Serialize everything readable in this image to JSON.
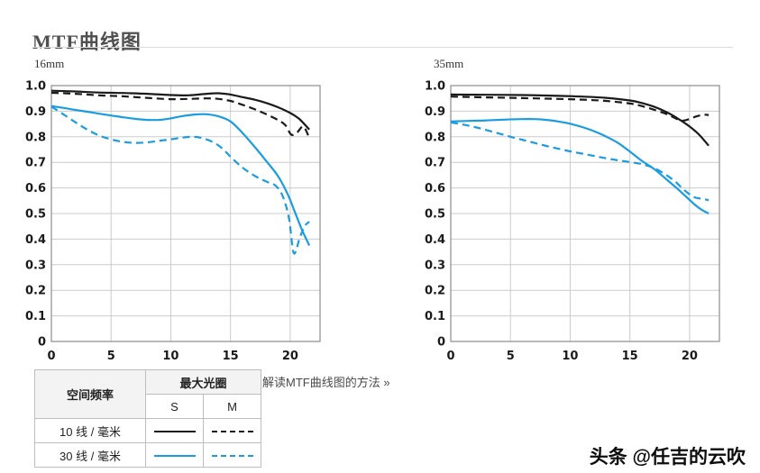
{
  "page": {
    "title": "MTF曲线图",
    "read_link": "解读MTF曲线图的方法 »",
    "watermark": "头条 @任吉的云吹"
  },
  "colors": {
    "black_curve": "#1a1a1a",
    "blue_curve": "#1a9ce1",
    "grid": "#cccccc",
    "plot_border": "#8c8c8c"
  },
  "legend_table": {
    "spatial_freq_header": "空间频率",
    "aperture_header": "最大光圈",
    "s_label": "S",
    "m_label": "M",
    "rows": [
      {
        "label": "10 线 / 毫米",
        "color": "#1a1a1a"
      },
      {
        "label": "30 线 / 毫米",
        "color": "#1a9ce1"
      }
    ]
  },
  "chart_data": [
    {
      "type": "line",
      "title": "16mm",
      "xlabel": "",
      "ylabel": "",
      "xlim": [
        0,
        22.5
      ],
      "ylim": [
        0,
        1.0
      ],
      "xticks": [
        0,
        5,
        10,
        15,
        20
      ],
      "yticks": [
        0,
        0.1,
        0.2,
        0.3,
        0.4,
        0.5,
        0.6,
        0.7,
        0.8,
        0.9,
        1.0
      ],
      "grid": true,
      "legend_position": "table-below-left",
      "series": [
        {
          "name": "10线/毫米 S",
          "color": "#1a1a1a",
          "dash": false,
          "points": [
            [
              0,
              0.98
            ],
            [
              2,
              0.977
            ],
            [
              4,
              0.973
            ],
            [
              6,
              0.971
            ],
            [
              8,
              0.968
            ],
            [
              10,
              0.963
            ],
            [
              11.5,
              0.962
            ],
            [
              13,
              0.968
            ],
            [
              14,
              0.97
            ],
            [
              15,
              0.965
            ],
            [
              16,
              0.955
            ],
            [
              17,
              0.945
            ],
            [
              18,
              0.932
            ],
            [
              19,
              0.915
            ],
            [
              20,
              0.893
            ],
            [
              20.8,
              0.868
            ],
            [
              21.6,
              0.828
            ]
          ]
        },
        {
          "name": "10线/毫米 M",
          "color": "#1a1a1a",
          "dash": true,
          "points": [
            [
              0,
              0.972
            ],
            [
              2,
              0.968
            ],
            [
              4,
              0.962
            ],
            [
              6,
              0.958
            ],
            [
              8,
              0.952
            ],
            [
              10,
              0.947
            ],
            [
              11.5,
              0.948
            ],
            [
              13,
              0.95
            ],
            [
              14,
              0.948
            ],
            [
              15,
              0.94
            ],
            [
              16,
              0.925
            ],
            [
              17,
              0.908
            ],
            [
              18,
              0.888
            ],
            [
              19,
              0.865
            ],
            [
              19.6,
              0.845
            ],
            [
              20.1,
              0.808
            ],
            [
              20.6,
              0.818
            ],
            [
              21.1,
              0.84
            ],
            [
              21.6,
              0.795
            ]
          ]
        },
        {
          "name": "30线/毫米 S",
          "color": "#1a9ce1",
          "dash": false,
          "points": [
            [
              0,
              0.92
            ],
            [
              1,
              0.913
            ],
            [
              2,
              0.905
            ],
            [
              3,
              0.898
            ],
            [
              4,
              0.89
            ],
            [
              5,
              0.883
            ],
            [
              6,
              0.876
            ],
            [
              7,
              0.87
            ],
            [
              8,
              0.866
            ],
            [
              9,
              0.866
            ],
            [
              10,
              0.872
            ],
            [
              11,
              0.881
            ],
            [
              12,
              0.887
            ],
            [
              13,
              0.888
            ],
            [
              14,
              0.88
            ],
            [
              15,
              0.86
            ],
            [
              16,
              0.815
            ],
            [
              17,
              0.762
            ],
            [
              18,
              0.705
            ],
            [
              19,
              0.645
            ],
            [
              19.8,
              0.575
            ],
            [
              20.4,
              0.505
            ],
            [
              21,
              0.435
            ],
            [
              21.6,
              0.375
            ]
          ]
        },
        {
          "name": "30线/毫米 M",
          "color": "#1a9ce1",
          "dash": true,
          "points": [
            [
              0,
              0.918
            ],
            [
              1,
              0.888
            ],
            [
              2,
              0.857
            ],
            [
              3,
              0.828
            ],
            [
              4,
              0.805
            ],
            [
              5,
              0.79
            ],
            [
              6,
              0.78
            ],
            [
              7,
              0.776
            ],
            [
              8,
              0.778
            ],
            [
              9,
              0.784
            ],
            [
              10,
              0.79
            ],
            [
              11,
              0.797
            ],
            [
              11.8,
              0.8
            ],
            [
              12.6,
              0.795
            ],
            [
              13.5,
              0.78
            ],
            [
              14.3,
              0.755
            ],
            [
              15,
              0.722
            ],
            [
              16,
              0.68
            ],
            [
              17,
              0.648
            ],
            [
              18,
              0.625
            ],
            [
              18.8,
              0.608
            ],
            [
              19.4,
              0.565
            ],
            [
              19.9,
              0.48
            ],
            [
              20.3,
              0.345
            ],
            [
              20.8,
              0.405
            ],
            [
              21.2,
              0.45
            ],
            [
              21.6,
              0.468
            ]
          ]
        }
      ]
    },
    {
      "type": "line",
      "title": "35mm",
      "xlabel": "",
      "ylabel": "",
      "xlim": [
        0,
        22.5
      ],
      "ylim": [
        0,
        1.0
      ],
      "xticks": [
        0,
        5,
        10,
        15,
        20
      ],
      "yticks": [
        0,
        0.1,
        0.2,
        0.3,
        0.4,
        0.5,
        0.6,
        0.7,
        0.8,
        0.9,
        1.0
      ],
      "grid": true,
      "legend_position": "table-below-left",
      "series": [
        {
          "name": "10线/毫米 S",
          "color": "#1a1a1a",
          "dash": false,
          "points": [
            [
              0,
              0.965
            ],
            [
              3,
              0.964
            ],
            [
              6,
              0.963
            ],
            [
              9,
              0.96
            ],
            [
              11,
              0.957
            ],
            [
              13,
              0.952
            ],
            [
              15,
              0.942
            ],
            [
              16,
              0.932
            ],
            [
              17,
              0.918
            ],
            [
              18,
              0.898
            ],
            [
              19,
              0.872
            ],
            [
              20,
              0.84
            ],
            [
              20.8,
              0.808
            ],
            [
              21.6,
              0.765
            ]
          ]
        },
        {
          "name": "10线/毫米 M",
          "color": "#1a1a1a",
          "dash": true,
          "points": [
            [
              0,
              0.957
            ],
            [
              3,
              0.954
            ],
            [
              6,
              0.951
            ],
            [
              9,
              0.948
            ],
            [
              11,
              0.945
            ],
            [
              13,
              0.94
            ],
            [
              15,
              0.93
            ],
            [
              16,
              0.92
            ],
            [
              17,
              0.906
            ],
            [
              18,
              0.89
            ],
            [
              18.7,
              0.875
            ],
            [
              19.3,
              0.863
            ],
            [
              19.9,
              0.868
            ],
            [
              20.6,
              0.88
            ],
            [
              21.2,
              0.886
            ],
            [
              21.6,
              0.885
            ]
          ]
        },
        {
          "name": "30线/毫米 S",
          "color": "#1a9ce1",
          "dash": false,
          "points": [
            [
              0,
              0.86
            ],
            [
              1.5,
              0.862
            ],
            [
              3,
              0.864
            ],
            [
              4.5,
              0.867
            ],
            [
              6,
              0.869
            ],
            [
              7,
              0.869
            ],
            [
              8,
              0.866
            ],
            [
              9,
              0.86
            ],
            [
              10,
              0.851
            ],
            [
              11,
              0.838
            ],
            [
              12,
              0.822
            ],
            [
              13,
              0.801
            ],
            [
              14,
              0.776
            ],
            [
              15,
              0.742
            ],
            [
              16,
              0.706
            ],
            [
              17,
              0.675
            ],
            [
              18,
              0.636
            ],
            [
              19,
              0.596
            ],
            [
              19.8,
              0.562
            ],
            [
              20.5,
              0.532
            ],
            [
              21,
              0.515
            ],
            [
              21.6,
              0.5
            ]
          ]
        },
        {
          "name": "30线/毫米 M",
          "color": "#1a9ce1",
          "dash": true,
          "points": [
            [
              0,
              0.856
            ],
            [
              1,
              0.848
            ],
            [
              2,
              0.838
            ],
            [
              3,
              0.826
            ],
            [
              4,
              0.813
            ],
            [
              5,
              0.8
            ],
            [
              6,
              0.788
            ],
            [
              7,
              0.776
            ],
            [
              8,
              0.764
            ],
            [
              9,
              0.753
            ],
            [
              10,
              0.743
            ],
            [
              11,
              0.734
            ],
            [
              12,
              0.725
            ],
            [
              13,
              0.716
            ],
            [
              14,
              0.708
            ],
            [
              15,
              0.701
            ],
            [
              16,
              0.693
            ],
            [
              17,
              0.678
            ],
            [
              18,
              0.652
            ],
            [
              18.8,
              0.625
            ],
            [
              19.4,
              0.598
            ],
            [
              20,
              0.575
            ],
            [
              20.5,
              0.562
            ],
            [
              21,
              0.558
            ],
            [
              21.6,
              0.552
            ]
          ]
        }
      ]
    }
  ]
}
